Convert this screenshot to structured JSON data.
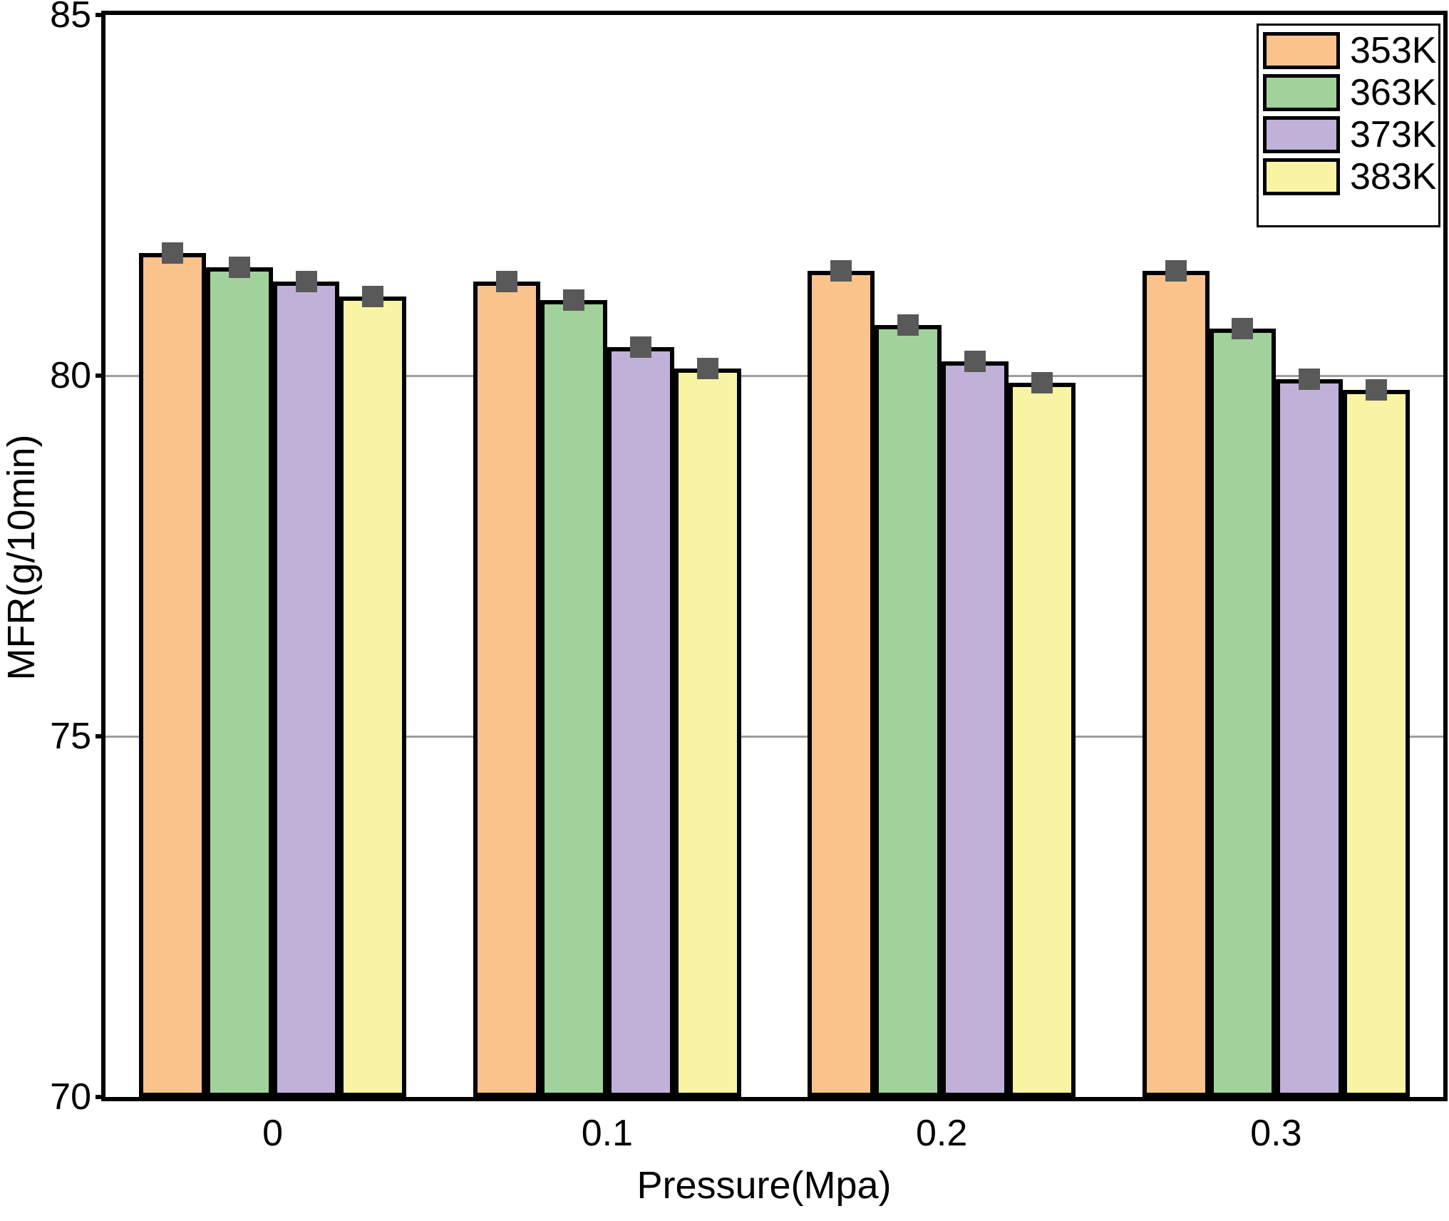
{
  "chart_data": {
    "type": "bar",
    "title": "",
    "xlabel": "Pressure(Mpa)",
    "ylabel": "MFR(g/10min)",
    "categories": [
      "0",
      "0.1",
      "0.2",
      "0.3"
    ],
    "series": [
      {
        "name": "353K",
        "color": "#FAC38C",
        "values": [
          81.7,
          81.3,
          81.45,
          81.45
        ]
      },
      {
        "name": "363K",
        "color": "#A2D29C",
        "values": [
          81.5,
          81.05,
          80.7,
          80.65
        ]
      },
      {
        "name": "373K",
        "color": "#C1B1D9",
        "values": [
          81.3,
          80.4,
          80.2,
          79.95
        ]
      },
      {
        "name": "383K",
        "color": "#F8F4A4",
        "values": [
          81.1,
          80.1,
          79.9,
          79.8
        ]
      }
    ],
    "ylim": [
      70,
      85
    ],
    "yticks": [
      70,
      75,
      80,
      85
    ],
    "gridlines": [
      75,
      80
    ],
    "grid": "horizontal",
    "legend_position": "top-right",
    "bar_edge_color": "#000000",
    "error_marker_color": "#595959",
    "gridline_color": "#9E9E9E",
    "axis_color": "#000000"
  }
}
